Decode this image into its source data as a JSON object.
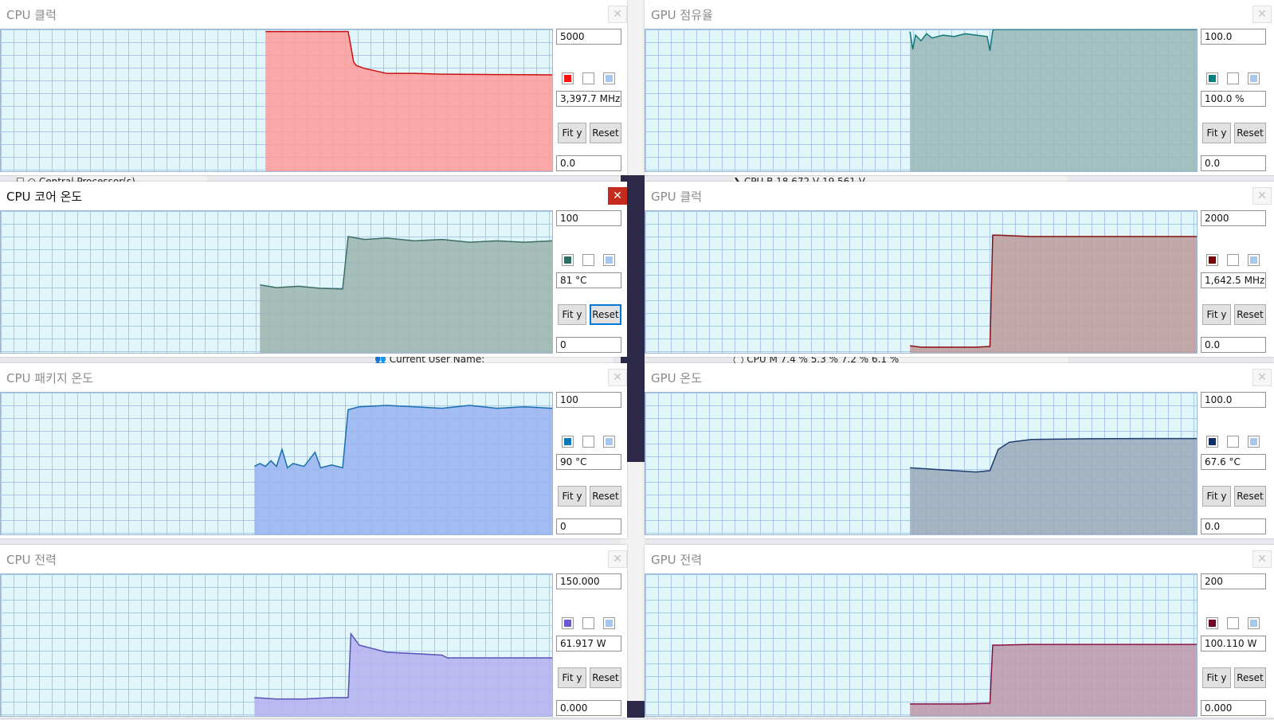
{
  "background": {
    "under_rows": [
      "☐  ○  Central Processor(s)",
      "❯   CPU B            18.672 V          19.561 V",
      "👥 Current User Name:",
      "◯  CPU M        7.4 %          5.3 %          7.2 %          6.1 %"
    ]
  },
  "windows": [
    {
      "id": "cpu-clock",
      "title": "CPU 클럭",
      "max": "5000",
      "min": "0.0",
      "current": "3,397.7 MHz",
      "color": "#ff1111",
      "fill": "#ff9a9a",
      "line": "#cc1010",
      "fit_label": "Fit y",
      "reset_label": "Reset",
      "close_label": "✕",
      "active": false,
      "series": [
        [
          0.48,
          0.985
        ],
        [
          0.63,
          0.985
        ],
        [
          0.64,
          0.77
        ],
        [
          0.645,
          0.745
        ],
        [
          0.66,
          0.725
        ],
        [
          0.7,
          0.69
        ],
        [
          0.75,
          0.69
        ],
        [
          0.8,
          0.685
        ],
        [
          0.9,
          0.682
        ],
        [
          1.0,
          0.68
        ]
      ],
      "series_start": 0.48
    },
    {
      "id": "gpu-usage",
      "title": "GPU 점유율",
      "max": "100.0",
      "min": "0.0",
      "current": "100.0 %",
      "color": "#008080",
      "fill": "#9ab6b6",
      "line": "#117777",
      "fit_label": "Fit y",
      "reset_label": "Reset",
      "close_label": "✕",
      "active": false,
      "series": [
        [
          0.48,
          0.985
        ],
        [
          0.485,
          0.86
        ],
        [
          0.49,
          0.96
        ],
        [
          0.5,
          0.92
        ],
        [
          0.51,
          0.97
        ],
        [
          0.52,
          0.94
        ],
        [
          0.54,
          0.96
        ],
        [
          0.56,
          0.95
        ],
        [
          0.58,
          0.97
        ],
        [
          0.6,
          0.96
        ],
        [
          0.62,
          0.95
        ],
        [
          0.625,
          0.85
        ],
        [
          0.63,
          0.99
        ],
        [
          0.632,
          1.0
        ],
        [
          0.64,
          1.0
        ],
        [
          1.0,
          1.0
        ]
      ],
      "series_start": 0.48
    },
    {
      "id": "cpu-core-temp",
      "title": "CPU 코어 온도",
      "max": "100",
      "min": "0",
      "current": "81 °C",
      "color": "#2f6d62",
      "fill": "#9bb4ad",
      "line": "#3a6e66",
      "fit_label": "Fit y",
      "reset_label": "Reset",
      "close_label": "✕",
      "active": true,
      "series": [
        [
          0.47,
          0.48
        ],
        [
          0.5,
          0.46
        ],
        [
          0.54,
          0.47
        ],
        [
          0.58,
          0.455
        ],
        [
          0.62,
          0.45
        ],
        [
          0.63,
          0.82
        ],
        [
          0.66,
          0.8
        ],
        [
          0.7,
          0.81
        ],
        [
          0.75,
          0.79
        ],
        [
          0.8,
          0.8
        ],
        [
          0.85,
          0.78
        ],
        [
          0.9,
          0.79
        ],
        [
          0.95,
          0.78
        ],
        [
          1.0,
          0.79
        ]
      ],
      "series_start": 0.47
    },
    {
      "id": "gpu-clock",
      "title": "GPU 클럭",
      "max": "2000",
      "min": "0.0",
      "current": "1,642.5 MHz",
      "color": "#7a0000",
      "fill": "#bc9a9a",
      "line": "#8b1010",
      "fit_label": "Fit y",
      "reset_label": "Reset",
      "close_label": "✕",
      "active": false,
      "series": [
        [
          0.48,
          0.05
        ],
        [
          0.5,
          0.04
        ],
        [
          0.55,
          0.04
        ],
        [
          0.6,
          0.04
        ],
        [
          0.625,
          0.045
        ],
        [
          0.63,
          0.83
        ],
        [
          0.64,
          0.83
        ],
        [
          0.7,
          0.82
        ],
        [
          0.8,
          0.82
        ],
        [
          0.9,
          0.82
        ],
        [
          1.0,
          0.82
        ]
      ],
      "series_start": 0.48
    },
    {
      "id": "cpu-package-temp",
      "title": "CPU 패키지 온도",
      "max": "100",
      "min": "0",
      "current": "90 °C",
      "color": "#0a78b8",
      "fill": "#98b2f0",
      "line": "#1a6fb0",
      "fit_label": "Fit y",
      "reset_label": "Reset",
      "close_label": "✕",
      "active": false,
      "series": [
        [
          0.46,
          0.48
        ],
        [
          0.47,
          0.5
        ],
        [
          0.48,
          0.48
        ],
        [
          0.49,
          0.52
        ],
        [
          0.5,
          0.48
        ],
        [
          0.51,
          0.6
        ],
        [
          0.52,
          0.47
        ],
        [
          0.53,
          0.5
        ],
        [
          0.55,
          0.48
        ],
        [
          0.57,
          0.58
        ],
        [
          0.58,
          0.47
        ],
        [
          0.6,
          0.49
        ],
        [
          0.62,
          0.47
        ],
        [
          0.63,
          0.88
        ],
        [
          0.65,
          0.9
        ],
        [
          0.7,
          0.91
        ],
        [
          0.75,
          0.9
        ],
        [
          0.8,
          0.89
        ],
        [
          0.85,
          0.91
        ],
        [
          0.9,
          0.89
        ],
        [
          0.95,
          0.9
        ],
        [
          1.0,
          0.89
        ]
      ],
      "series_start": 0.46
    },
    {
      "id": "gpu-temp",
      "title": "GPU 온도",
      "max": "100.0",
      "min": "0.0",
      "current": "67.6 °C",
      "color": "#0a2e6e",
      "fill": "#9aa8b8",
      "line": "#1e3c70",
      "fit_label": "Fit y",
      "reset_label": "Reset",
      "close_label": "✕",
      "active": false,
      "series": [
        [
          0.48,
          0.47
        ],
        [
          0.52,
          0.46
        ],
        [
          0.56,
          0.45
        ],
        [
          0.6,
          0.44
        ],
        [
          0.625,
          0.45
        ],
        [
          0.64,
          0.6
        ],
        [
          0.66,
          0.65
        ],
        [
          0.7,
          0.67
        ],
        [
          0.8,
          0.675
        ],
        [
          0.9,
          0.676
        ],
        [
          1.0,
          0.676
        ]
      ],
      "series_start": 0.48
    },
    {
      "id": "cpu-power",
      "title": "CPU 전력",
      "max": "150.000",
      "min": "0.000",
      "current": "61.917 W",
      "color": "#6a5acd",
      "fill": "#b4b0f0",
      "line": "#5a52b8",
      "fit_label": "Fit y",
      "reset_label": "Reset",
      "close_label": "✕",
      "active": false,
      "series": [
        [
          0.46,
          0.13
        ],
        [
          0.5,
          0.12
        ],
        [
          0.55,
          0.12
        ],
        [
          0.6,
          0.13
        ],
        [
          0.63,
          0.13
        ],
        [
          0.635,
          0.58
        ],
        [
          0.65,
          0.5
        ],
        [
          0.7,
          0.45
        ],
        [
          0.75,
          0.44
        ],
        [
          0.8,
          0.43
        ],
        [
          0.81,
          0.41
        ],
        [
          0.9,
          0.41
        ],
        [
          1.0,
          0.41
        ]
      ],
      "series_start": 0.46
    },
    {
      "id": "gpu-power",
      "title": "GPU 전력",
      "max": "200",
      "min": "0.000",
      "current": "100.110 W",
      "color": "#7a0030",
      "fill": "#bc98a8",
      "line": "#8a1040",
      "fit_label": "Fit y",
      "reset_label": "Reset",
      "close_label": "✕",
      "active": false,
      "series": [
        [
          0.48,
          0.085
        ],
        [
          0.52,
          0.085
        ],
        [
          0.58,
          0.085
        ],
        [
          0.625,
          0.09
        ],
        [
          0.63,
          0.5
        ],
        [
          0.64,
          0.5
        ],
        [
          0.7,
          0.505
        ],
        [
          0.8,
          0.505
        ],
        [
          0.9,
          0.505
        ],
        [
          1.0,
          0.505
        ]
      ],
      "series_start": 0.48
    }
  ]
}
